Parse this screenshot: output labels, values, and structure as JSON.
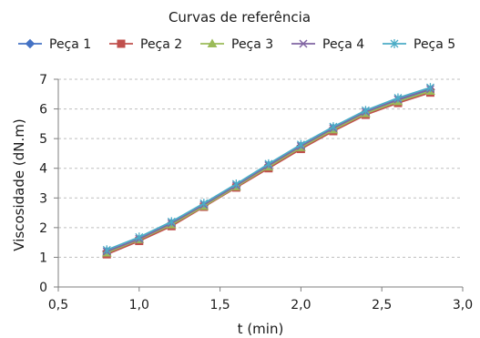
{
  "chart_data": {
    "type": "line",
    "title": "Curvas de referência",
    "xlabel": "t (min)",
    "ylabel": "Viscosidade (dN.m)",
    "xlim": [
      0.5,
      3.0
    ],
    "ylim": [
      0,
      7
    ],
    "xticks": [
      0.5,
      1.0,
      1.5,
      2.0,
      2.5,
      3.0
    ],
    "xtick_labels": [
      "0,5",
      "1,0",
      "1,5",
      "2,0",
      "2,5",
      "3,0"
    ],
    "yticks": [
      0,
      1,
      2,
      3,
      4,
      5,
      6,
      7
    ],
    "ytick_labels": [
      "0",
      "1",
      "2",
      "3",
      "4",
      "5",
      "6",
      "7"
    ],
    "grid": "horizontal dashed",
    "legend_position": "top",
    "x": [
      0.8,
      1.0,
      1.2,
      1.4,
      1.6,
      1.8,
      2.0,
      2.2,
      2.4,
      2.6,
      2.8
    ],
    "series": [
      {
        "name": "Peça 1",
        "color": "#4472c4",
        "marker": "diamond",
        "values": [
          1.2,
          1.6,
          2.15,
          2.75,
          3.4,
          4.1,
          4.75,
          5.35,
          5.9,
          6.3,
          6.65
        ]
      },
      {
        "name": "Peça 2",
        "color": "#c0504d",
        "marker": "square",
        "values": [
          1.1,
          1.55,
          2.05,
          2.7,
          3.35,
          4.0,
          4.65,
          5.25,
          5.8,
          6.2,
          6.55
        ]
      },
      {
        "name": "Peça 3",
        "color": "#9bbb59",
        "marker": "triangle",
        "values": [
          1.15,
          1.6,
          2.1,
          2.72,
          3.38,
          4.05,
          4.7,
          5.3,
          5.85,
          6.25,
          6.6
        ]
      },
      {
        "name": "Peça 4",
        "color": "#8064a2",
        "marker": "x",
        "values": [
          1.2,
          1.62,
          2.15,
          2.77,
          3.42,
          4.1,
          4.75,
          5.35,
          5.9,
          6.32,
          6.67
        ]
      },
      {
        "name": "Peça 5",
        "color": "#4bacc6",
        "marker": "asterisk",
        "values": [
          1.25,
          1.68,
          2.2,
          2.82,
          3.47,
          4.15,
          4.8,
          5.4,
          5.95,
          6.37,
          6.72
        ]
      }
    ]
  }
}
